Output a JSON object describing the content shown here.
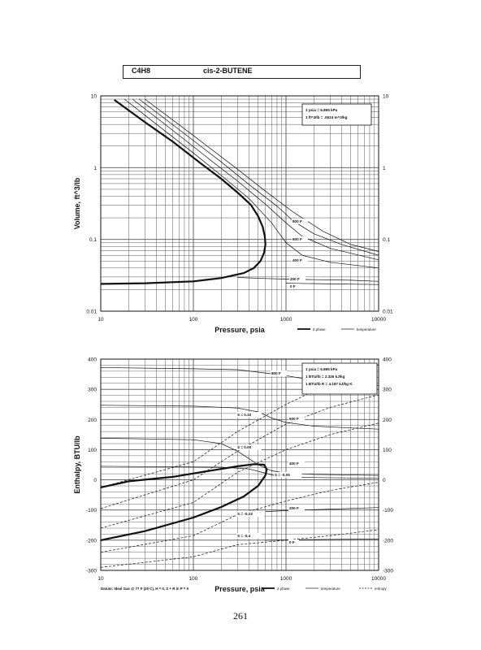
{
  "header": {
    "formula": "C4H8",
    "compound": "cis-2-BUTENE"
  },
  "page_number": "261",
  "chart_data": [
    {
      "type": "line",
      "panel": "volume",
      "title": "",
      "xlabel": "Pressure,  psia",
      "ylabel": "Volume, ft^3/lb",
      "x_scale": "log",
      "y_scale": "log",
      "xlim": [
        10,
        10000
      ],
      "ylim": [
        0.01,
        10
      ],
      "x_ticks": [
        "10",
        "100",
        "1000",
        "10000"
      ],
      "y_ticks_left": [
        "10",
        "1",
        "0.1",
        "0.01"
      ],
      "y_ticks_right": [
        "10",
        "1",
        "0.1",
        "0.01"
      ],
      "grid": true,
      "info_box": [
        "1 psia  =  6.895 kPa",
        "1 ft^3/lb  =  .0624 m^3/kg"
      ],
      "legend": [
        {
          "label": "2 phase",
          "style": "bold"
        },
        {
          "label": "temperature",
          "style": "solid"
        }
      ],
      "series": [
        {
          "kind": "two-phase",
          "points": [
            [
              10,
              0.024
            ],
            [
              30,
              0.0245
            ],
            [
              100,
              0.026
            ],
            [
              200,
              0.029
            ],
            [
              350,
              0.034
            ],
            [
              450,
              0.04
            ],
            [
              530,
              0.05
            ],
            [
              580,
              0.065
            ],
            [
              600,
              0.085
            ],
            [
              590,
              0.11
            ],
            [
              560,
              0.15
            ],
            [
              500,
              0.21
            ],
            [
              420,
              0.3
            ],
            [
              300,
              0.45
            ],
            [
              200,
              0.7
            ],
            [
              120,
              1.15
            ],
            [
              60,
              2.3
            ],
            [
              30,
              4.3
            ],
            [
              14,
              8.8
            ]
          ]
        },
        {
          "kind": "temperature",
          "label": "200 F",
          "points": [
            [
              300,
              0.0295
            ],
            [
              600,
              0.0285
            ],
            [
              1000,
              0.028
            ],
            [
              2000,
              0.0275
            ],
            [
              5000,
              0.027
            ],
            [
              10000,
              0.026
            ]
          ]
        },
        {
          "kind": "temperature",
          "label": "0 F",
          "points": [
            [
              1000,
              0.0245
            ],
            [
              3000,
              0.024
            ],
            [
              10000,
              0.0235
            ]
          ]
        },
        {
          "kind": "temperature",
          "label": "400 F",
          "points": [
            [
              18,
              9
            ],
            [
              50,
              3.2
            ],
            [
              100,
              1.6
            ],
            [
              200,
              0.78
            ],
            [
              400,
              0.37
            ],
            [
              700,
              0.17
            ],
            [
              1000,
              0.09
            ],
            [
              1500,
              0.06
            ],
            [
              3000,
              0.048
            ],
            [
              10000,
              0.04
            ]
          ]
        },
        {
          "kind": "temperature",
          "label": "600 F",
          "points": [
            [
              22,
              9
            ],
            [
              60,
              3.3
            ],
            [
              150,
              1.3
            ],
            [
              300,
              0.65
            ],
            [
              600,
              0.31
            ],
            [
              1000,
              0.17
            ],
            [
              1500,
              0.11
            ],
            [
              3000,
              0.075
            ],
            [
              10000,
              0.052
            ]
          ]
        },
        {
          "kind": "temperature",
          "label": "800 F",
          "points": [
            [
              26,
              9
            ],
            [
              70,
              3.4
            ],
            [
              200,
              1.2
            ],
            [
              400,
              0.58
            ],
            [
              800,
              0.29
            ],
            [
              1200,
              0.18
            ],
            [
              2000,
              0.12
            ],
            [
              4000,
              0.085
            ],
            [
              10000,
              0.06
            ]
          ]
        },
        {
          "kind": "temperature",
          "label": "",
          "points": [
            [
              30,
              9
            ],
            [
              100,
              2.8
            ],
            [
              300,
              0.95
            ],
            [
              600,
              0.47
            ],
            [
              1200,
              0.24
            ],
            [
              2500,
              0.13
            ],
            [
              5000,
              0.085
            ],
            [
              10000,
              0.068
            ]
          ]
        }
      ],
      "annotations": [
        "800 F",
        "600 F",
        "400 F",
        "200 F",
        "0 F"
      ]
    },
    {
      "type": "line",
      "panel": "enthalpy",
      "title": "",
      "xlabel": "Pressure,  psia",
      "ylabel": "Enthalpy, BTU/lb",
      "x_scale": "log",
      "y_scale": "linear",
      "xlim": [
        10,
        10000
      ],
      "ylim": [
        -300,
        400
      ],
      "x_ticks": [
        "10",
        "100",
        "1000",
        "10000"
      ],
      "y_ticks_left": [
        "400",
        "300",
        "200",
        "100",
        "0",
        "-100",
        "-200",
        "-300"
      ],
      "y_ticks_right": [
        "400",
        "300",
        "200",
        "100",
        "0",
        "-100",
        "-200",
        "-300"
      ],
      "grid": true,
      "info_box": [
        "1 psia  =  6.895 kPa",
        "1 BTU/lb  =  2.326 kJ/kg",
        "1 BTU/lb R  =  4.187 kJ/kg K"
      ],
      "footnote": "Datum: Ideal Gas @ 77 F (25 C),  H = 0,  S + R ln P = 0",
      "legend": [
        {
          "label": "2 phase",
          "style": "bold"
        },
        {
          "label": "temperature",
          "style": "solid"
        },
        {
          "label": "entropy",
          "style": "dashed"
        }
      ],
      "series": [
        {
          "kind": "two-phase",
          "points": [
            [
              10,
              -200
            ],
            [
              30,
              -170
            ],
            [
              100,
              -125
            ],
            [
              200,
              -90
            ],
            [
              350,
              -55
            ],
            [
              500,
              -20
            ],
            [
              600,
              15
            ],
            [
              620,
              35
            ],
            [
              580,
              50
            ],
            [
              450,
              52
            ],
            [
              300,
              45
            ],
            [
              150,
              30
            ],
            [
              60,
              10
            ],
            [
              20,
              -5
            ],
            [
              10,
              -25
            ]
          ]
        },
        {
          "kind": "temperature",
          "label": "800 F",
          "points": [
            [
              10,
              372
            ],
            [
              100,
              368
            ],
            [
              300,
              365
            ],
            [
              500,
              357
            ],
            [
              1000,
              345
            ],
            [
              2000,
              330
            ],
            [
              5000,
              318
            ],
            [
              10000,
              312
            ]
          ]
        },
        {
          "kind": "temperature",
          "label": "600 F",
          "points": [
            [
              10,
              247
            ],
            [
              100,
              244
            ],
            [
              300,
              238
            ],
            [
              500,
              225
            ],
            [
              700,
              205
            ],
            [
              1000,
              190
            ],
            [
              2000,
              178
            ],
            [
              5000,
              172
            ],
            [
              10000,
              168
            ]
          ]
        },
        {
          "kind": "temperature",
          "label": "400 F",
          "points": [
            [
              10,
              138
            ],
            [
              100,
              133
            ],
            [
              200,
              120
            ],
            [
              300,
              95
            ],
            [
              400,
              70
            ],
            [
              500,
              50
            ],
            [
              700,
              30
            ],
            [
              1000,
              22
            ],
            [
              2000,
              18
            ],
            [
              10000,
              15
            ]
          ]
        },
        {
          "kind": "temperature",
          "label": "",
          "points": [
            [
              10,
              45
            ],
            [
              200,
              42
            ],
            [
              400,
              36
            ],
            [
              600,
              22
            ],
            [
              800,
              12
            ],
            [
              1500,
              8
            ],
            [
              10000,
              5
            ]
          ]
        },
        {
          "kind": "temperature",
          "label": "200 F",
          "points": [
            [
              600,
              -105
            ],
            [
              1000,
              -102
            ],
            [
              3000,
              -97
            ],
            [
              10000,
              -92
            ]
          ]
        },
        {
          "kind": "temperature",
          "label": "0 F",
          "points": [
            [
              600,
              -200
            ],
            [
              2000,
              -198
            ],
            [
              10000,
              -196
            ]
          ]
        },
        {
          "kind": "entropy",
          "label": "S = 0.10",
          "points": [
            [
              10,
              -25
            ],
            [
              100,
              60
            ],
            [
              300,
              160
            ],
            [
              1000,
              250
            ],
            [
              3000,
              320
            ],
            [
              10000,
              382
            ]
          ]
        },
        {
          "kind": "entropy",
          "label": "S = 0.00",
          "points": [
            [
              10,
              -95
            ],
            [
              100,
              0
            ],
            [
              300,
              95
            ],
            [
              1000,
              185
            ],
            [
              3000,
              240
            ],
            [
              10000,
              282
            ]
          ]
        },
        {
          "kind": "entropy",
          "label": "S = -0.05",
          "points": [
            [
              10,
              -160
            ],
            [
              100,
              -75
            ],
            [
              300,
              25
            ],
            [
              1000,
              100
            ],
            [
              3000,
              150
            ],
            [
              10000,
              188
            ]
          ]
        },
        {
          "kind": "entropy",
          "label": "S = -0.23",
          "points": [
            [
              10,
              -240
            ],
            [
              100,
              -185
            ],
            [
              300,
              -115
            ],
            [
              1000,
              -70
            ],
            [
              3000,
              -35
            ],
            [
              10000,
              -8
            ]
          ]
        },
        {
          "kind": "entropy",
          "label": "S = -0.4",
          "points": [
            [
              10,
              -290
            ],
            [
              100,
              -255
            ],
            [
              300,
              -215
            ],
            [
              1000,
              -200
            ],
            [
              3000,
              -185
            ],
            [
              10000,
              -165
            ]
          ]
        }
      ],
      "annotations": [
        "800 F",
        "600 F",
        "400 F",
        "200 F",
        "0 F",
        "S = 0.10",
        "S = 0.00",
        "S = -0.05",
        "S = -0.23",
        "S = -0.4"
      ]
    }
  ]
}
